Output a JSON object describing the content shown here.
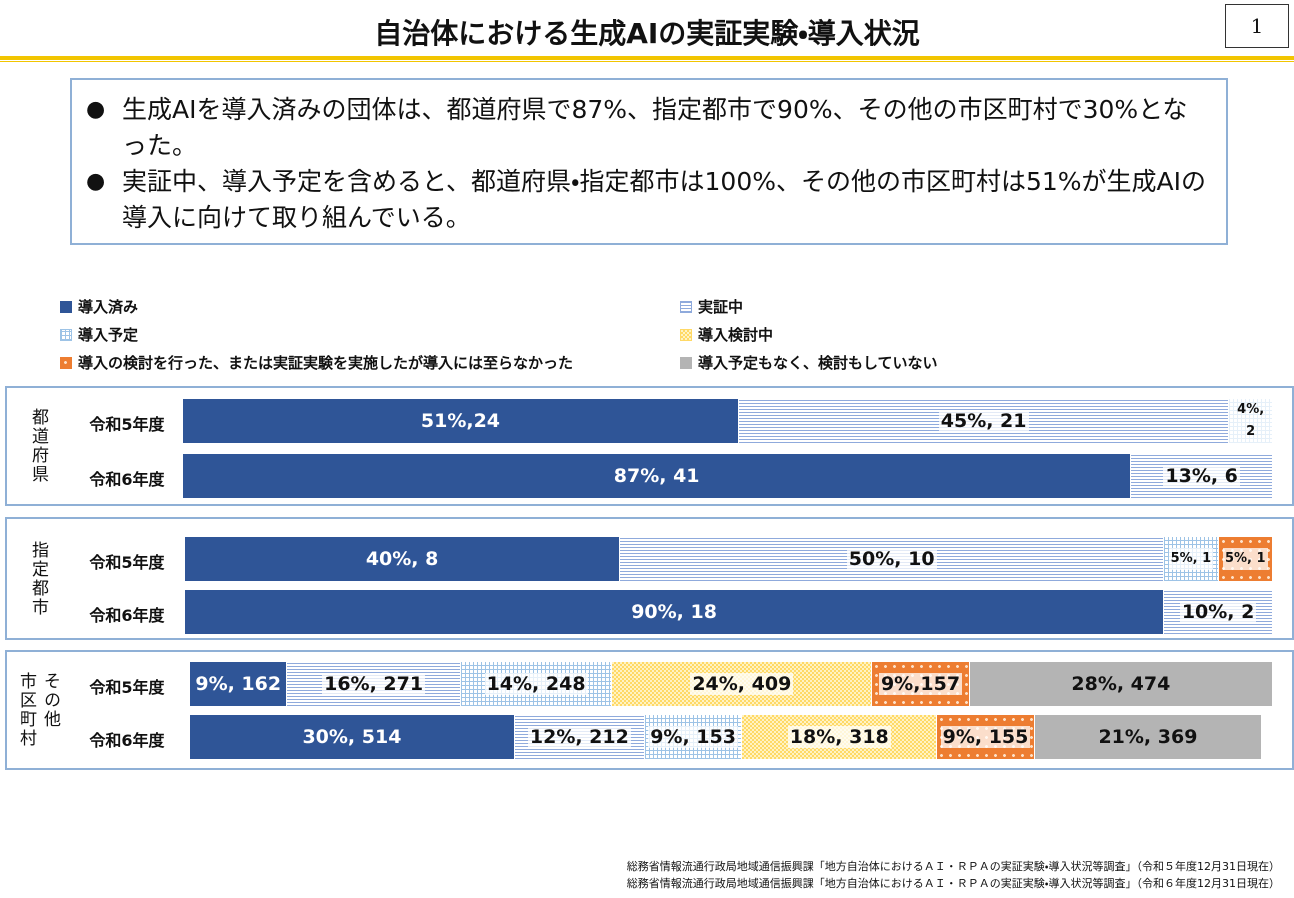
{
  "title": "自治体における生成AIの実証実験・導入状況",
  "page_number": "1",
  "bullets": [
    "生成AIを導入済みの団体は、都道府県で87%、指定都市で90%、その他の市区町村で30%となった。",
    "実証中、導入予定を含めると、都道府県・指定都市は100%、その他の市区町村は51%が生成AIの導入に向けて取り組んでいる。"
  ],
  "legend": [
    {
      "name": "導入済み",
      "color": "#2f5597",
      "pattern": "solid"
    },
    {
      "name": "実証中",
      "color": "#8faadc",
      "pattern": "hlines"
    },
    {
      "name": "導入予定",
      "color": "#9dc3e6",
      "pattern": "grid"
    },
    {
      "name": "導入検討中",
      "color": "#ffd966",
      "pattern": "checker"
    },
    {
      "name": "導入の検討を行った、または実証実験を実施したが導入には至らなかった",
      "color": "#ed7d31",
      "pattern": "dots"
    },
    {
      "name": "導入予定もなく、検討もしていない",
      "color": "#b4b4b4",
      "pattern": "solid"
    }
  ],
  "chart_data": [
    {
      "type": "stacked_barh",
      "title_lines": [
        "都道府県"
      ],
      "categories": [
        "令和5年度",
        "令和6年度"
      ],
      "xlim": [
        0,
        100
      ],
      "series": [
        {
          "values": [
            51,
            87
          ],
          "value_labels": [
            "51%,24",
            "87%, 41"
          ]
        },
        {
          "values": [
            45,
            13
          ],
          "value_labels": [
            "45%, 21",
            "13%, 6"
          ]
        },
        {
          "values": [
            4,
            null
          ],
          "value_labels": [
            "4%, 2",
            null
          ]
        },
        {
          "values": [
            null,
            null
          ],
          "value_labels": [
            null,
            null
          ]
        },
        {
          "values": [
            null,
            null
          ],
          "value_labels": [
            null,
            null
          ]
        },
        {
          "values": [
            null,
            null
          ],
          "value_labels": [
            null,
            null
          ]
        }
      ]
    },
    {
      "type": "stacked_barh",
      "title_lines": [
        "指定都市"
      ],
      "categories": [
        "令和5年度",
        "令和6年度"
      ],
      "xlim": [
        0,
        100
      ],
      "series": [
        {
          "values": [
            40,
            90
          ],
          "value_labels": [
            "40%, 8",
            "90%, 18"
          ]
        },
        {
          "values": [
            50,
            10
          ],
          "value_labels": [
            "50%, 10",
            "10%, 2"
          ]
        },
        {
          "values": [
            5,
            null
          ],
          "value_labels": [
            "5%, 1",
            null
          ]
        },
        {
          "values": [
            null,
            null
          ],
          "value_labels": [
            null,
            null
          ]
        },
        {
          "values": [
            5,
            null
          ],
          "value_labels": [
            "5%, 1",
            null
          ]
        },
        {
          "values": [
            null,
            null
          ],
          "value_labels": [
            null,
            null
          ]
        }
      ]
    },
    {
      "type": "stacked_barh",
      "title_lines": [
        "その他",
        "市区町村"
      ],
      "categories": [
        "令和5年度",
        "令和6年度"
      ],
      "xlim": [
        0,
        100
      ],
      "series": [
        {
          "values": [
            9,
            30
          ],
          "value_labels": [
            "9%, 162",
            "30%, 514"
          ]
        },
        {
          "values": [
            16,
            12
          ],
          "value_labels": [
            "16%, 271",
            "12%, 212"
          ]
        },
        {
          "values": [
            14,
            9
          ],
          "value_labels": [
            "14%, 248",
            "9%, 153"
          ]
        },
        {
          "values": [
            24,
            18
          ],
          "value_labels": [
            "24%, 409",
            "18%, 318"
          ]
        },
        {
          "values": [
            9,
            9
          ],
          "value_labels": [
            "9%,157",
            "9%, 155"
          ]
        },
        {
          "values": [
            28,
            21
          ],
          "value_labels": [
            "28%, 474",
            "21%, 369"
          ]
        }
      ]
    }
  ],
  "footnotes": [
    "総務省情報流通行政局地域通信振興課「地方自治体におけるＡＩ・ＲＰＡの実証実験・導入状況等調査」（令和５年度12月31日現在）",
    "総務省情報流通行政局地域通信振興課「地方自治体におけるＡＩ・ＲＰＡの実証実験・導入状況等調査」（令和６年度12月31日現在）"
  ]
}
